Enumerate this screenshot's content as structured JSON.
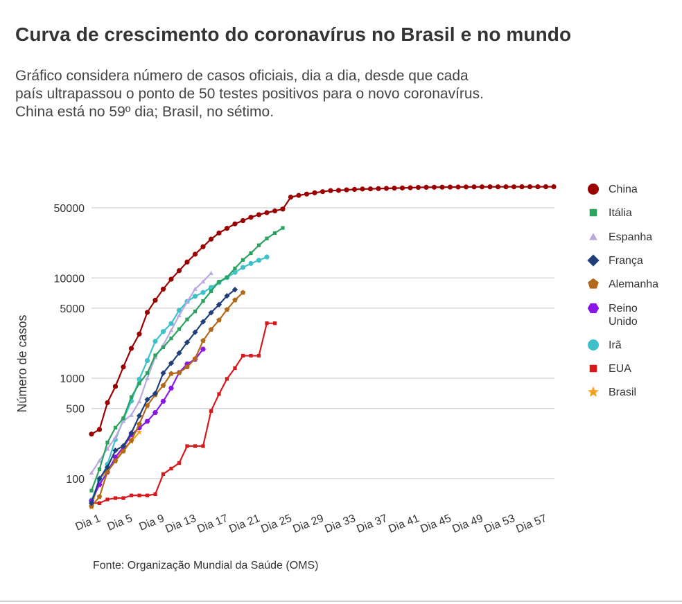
{
  "header": {
    "title": "Curva de crescimento do coronavírus no Brasil e no mundo",
    "subtitle_lines": [
      "Gráfico considera número de casos oficiais, dia a dia, desde que cada",
      "país ultrapassou o ponto de 50 testes positivos para o novo coronavírus.",
      "China está no 59º dia; Brasil, no sétimo."
    ]
  },
  "footer": {
    "source": "Fonte: Organização Mundial da Saúde (OMS)"
  },
  "chart_data": {
    "type": "line",
    "ylabel": "Número de casos",
    "xlabel": "",
    "y_scale": "log",
    "ylim": [
      40,
      100000
    ],
    "x_range": [
      1,
      59
    ],
    "grid": true,
    "legend_position": "right",
    "y_ticks": [
      100,
      500,
      1000,
      5000,
      10000,
      50000
    ],
    "y_tick_labels": [
      "100",
      "500",
      "1000",
      "5000",
      "10000",
      "50000"
    ],
    "x_ticks": [
      1,
      5,
      9,
      13,
      17,
      21,
      25,
      29,
      33,
      37,
      41,
      45,
      49,
      53,
      57
    ],
    "x_tick_labels": [
      "Dia 1",
      "Dia 5",
      "Dia 9",
      "Dia 13",
      "Dia 17",
      "Dia 21",
      "Dia 25",
      "Dia 29",
      "Dia 33",
      "Dia 37",
      "Dia 41",
      "Dia 45",
      "Dia 49",
      "Dia 53",
      "Dia 57"
    ],
    "series": [
      {
        "name": "China",
        "color": "#9a0000",
        "marker": "circle",
        "values": [
          278,
          309,
          571,
          830,
          1297,
          1985,
          2761,
          4537,
          5997,
          7736,
          9720,
          11821,
          14411,
          17238,
          20471,
          24363,
          28060,
          31211,
          34598,
          37251,
          40235,
          42708,
          44730,
          46550,
          48548,
          63851,
          66492,
          68500,
          70548,
          72436,
          74185,
          74576,
          75465,
          76288,
          76936,
          77150,
          77658,
          78064,
          78497,
          78824,
          79251,
          79824,
          80026,
          80151,
          80271,
          80422,
          80565,
          80711,
          80813,
          80859,
          80904,
          80924,
          80955,
          80980,
          81003,
          81021,
          81048,
          81077,
          81116
        ]
      },
      {
        "name": "Itália",
        "color": "#2ca25f",
        "marker": "square",
        "values": [
          76,
          124,
          229,
          322,
          400,
          650,
          888,
          1128,
          1694,
          2036,
          2502,
          3089,
          3858,
          4636,
          5883,
          7375,
          9172,
          10149,
          12462,
          15113,
          17660,
          21157,
          24747,
          27980,
          31506
        ]
      },
      {
        "name": "Espanha",
        "color": "#b9a9e0",
        "marker": "triangle",
        "values": [
          114,
          151,
          198,
          257,
          374,
          430,
          589,
          999,
          1622,
          2140,
          3004,
          4231,
          5753,
          7753,
          9191,
          11178
        ]
      },
      {
        "name": "França",
        "color": "#1f3f7a",
        "marker": "diamond",
        "values": [
          57,
          100,
          130,
          191,
          212,
          285,
          423,
          613,
          706,
          1126,
          1412,
          1784,
          2281,
          2876,
          3661,
          4499,
          5423,
          6633,
          7652
        ]
      },
      {
        "name": "Alemanha",
        "color": "#b06a1a",
        "marker": "pentagon",
        "values": [
          53,
          66,
          117,
          150,
          188,
          240,
          349,
          534,
          684,
          847,
          1112,
          1139,
          1296,
          1567,
          2369,
          3062,
          3795,
          4838,
          6012,
          7156
        ]
      },
      {
        "name": "Reino Unido",
        "color": "#8a17e6",
        "marker": "hexagon",
        "values": [
          60,
          87,
          116,
          164,
          206,
          273,
          321,
          373,
          456,
          590,
          798,
          1140,
          1391,
          1543,
          1950
        ]
      },
      {
        "name": "Irã",
        "color": "#3ec1c9",
        "marker": "circle",
        "values": [
          61,
          95,
          139,
          245,
          388,
          593,
          978,
          1501,
          2336,
          2922,
          3513,
          4747,
          5823,
          6566,
          7161,
          8042,
          9000,
          10075,
          11364,
          12729,
          13938,
          14991,
          16169
        ]
      },
      {
        "name": "EUA",
        "color": "#d7191c",
        "marker": "square",
        "values": [
          57,
          57,
          62,
          64,
          64,
          68,
          68,
          68,
          70,
          111,
          126,
          143,
          211,
          211,
          211,
          472,
          696,
          987,
          1264,
          1678,
          1678,
          1678,
          3536,
          3536
        ]
      },
      {
        "name": "Brasil",
        "color": "#f4a21e",
        "marker": "star",
        "values": [
          52,
          98,
          121,
          151,
          200,
          234,
          291
        ]
      }
    ]
  }
}
